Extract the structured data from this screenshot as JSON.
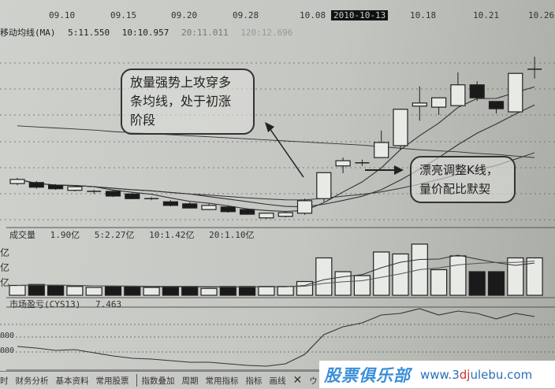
{
  "header": {
    "dates": [
      "09.10",
      "09.15",
      "09.20",
      "09.28",
      "10.08",
      "10.18",
      "10.21",
      "10.26"
    ],
    "selected_date": "2010-10-13",
    "ma_title": "移动均线(MA)",
    "ma_values": [
      "5:11.550",
      "10:10.957",
      "20:11.011",
      "120:12.696"
    ]
  },
  "volume_panel": {
    "title": "成交量",
    "values": [
      "1.90亿",
      "5:2.27亿",
      "10:1.42亿",
      "20:1.10亿"
    ],
    "unit": "亿"
  },
  "cys_panel": {
    "title": "市场盈亏(CYS13)",
    "value": "7.463",
    "axis_label": "000"
  },
  "annotations": {
    "callout1": [
      "放量强势上攻穿多",
      "条均线，处于初涨",
      "阶段"
    ],
    "callout2": [
      "漂亮调整K线，",
      "量价配比默契"
    ]
  },
  "tabs": [
    "时",
    "财务分析",
    "基本资料",
    "常用股票",
    "指数叠加",
    "周期",
    "常用指标",
    "指标",
    "画线",
    "✕",
    "ウ"
  ],
  "watermark": {
    "logo": "股票俱乐部",
    "url_pre": "www.3",
    "url_mid": "dj",
    "url_post": "ulebu.com"
  },
  "chart_data": {
    "type": "candlestick",
    "ohlc": [
      [
        11.18,
        11.29,
        11.15,
        11.26
      ],
      [
        11.2,
        11.23,
        11.08,
        11.11
      ],
      [
        11.15,
        11.17,
        11.06,
        11.08
      ],
      [
        11.05,
        11.15,
        11.03,
        11.12
      ],
      [
        11.03,
        11.06,
        10.98,
        11.03
      ],
      [
        11.03,
        11.06,
        10.92,
        10.94
      ],
      [
        10.98,
        11.0,
        10.88,
        10.89
      ],
      [
        10.89,
        10.92,
        10.86,
        10.89
      ],
      [
        10.83,
        10.86,
        10.74,
        10.76
      ],
      [
        10.79,
        10.82,
        10.7,
        10.71
      ],
      [
        10.68,
        10.79,
        10.67,
        10.76
      ],
      [
        10.73,
        10.76,
        10.62,
        10.64
      ],
      [
        10.68,
        10.7,
        10.58,
        10.59
      ],
      [
        10.52,
        10.62,
        10.5,
        10.61
      ],
      [
        10.55,
        10.64,
        10.53,
        10.62
      ],
      [
        10.61,
        10.89,
        10.58,
        10.85
      ],
      [
        10.89,
        11.39,
        10.83,
        11.39
      ],
      [
        11.52,
        11.68,
        11.38,
        11.62
      ],
      [
        11.58,
        11.64,
        11.52,
        11.58
      ],
      [
        11.68,
        12.2,
        11.68,
        11.97
      ],
      [
        11.91,
        12.61,
        11.83,
        12.61
      ],
      [
        12.67,
        13.05,
        12.39,
        12.73
      ],
      [
        12.65,
        12.83,
        12.5,
        12.83
      ],
      [
        12.68,
        13.32,
        12.68,
        13.08
      ],
      [
        13.08,
        13.15,
        12.77,
        12.83
      ],
      [
        12.76,
        12.76,
        12.53,
        12.62
      ],
      [
        12.56,
        13.3,
        12.56,
        13.3
      ],
      [
        13.38,
        13.62,
        13.2,
        13.38
      ]
    ],
    "ma120": [
      12.29,
      12.27,
      12.25,
      12.23,
      12.21,
      12.18,
      12.16,
      12.14,
      12.12,
      12.1,
      12.08,
      12.06,
      12.04,
      12.02,
      12.0,
      11.98,
      11.96,
      11.94,
      11.92,
      11.89,
      11.86,
      11.83,
      11.81,
      11.79,
      11.76,
      11.74,
      11.71,
      11.68
    ],
    "volume": [
      0.5,
      0.55,
      0.5,
      0.45,
      0.4,
      0.45,
      0.45,
      0.4,
      0.45,
      0.45,
      0.35,
      0.45,
      0.45,
      0.45,
      0.45,
      0.7,
      1.9,
      1.2,
      1.0,
      2.2,
      2.1,
      2.6,
      1.3,
      2.0,
      1.2,
      1.2,
      1.9,
      1.9
    ],
    "cys": [
      -5,
      -5.5,
      -6.25,
      -6,
      -7,
      -8,
      -8.75,
      -9,
      -9.5,
      -10,
      -10,
      -10.5,
      -11,
      -11.25,
      -10.5,
      -7.5,
      -1.25,
      1.25,
      2.5,
      5,
      5.5,
      7,
      5,
      6.25,
      5.5,
      3.75,
      5.5,
      4.5
    ],
    "colors": {
      "up": "#e8eae5",
      "down": "#1a1a1a",
      "line": "#333333"
    }
  }
}
